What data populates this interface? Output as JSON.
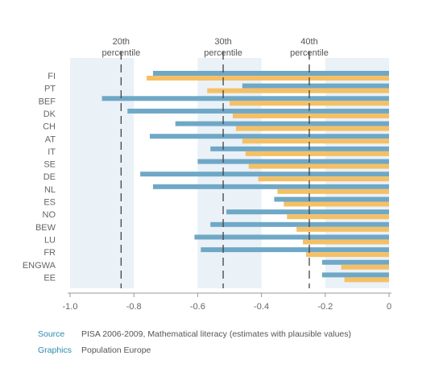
{
  "chart_data": {
    "type": "bar",
    "orientation": "horizontal",
    "categories": [
      "FI",
      "PT",
      "BEF",
      "DK",
      "CH",
      "AT",
      "IT",
      "SE",
      "DE",
      "NL",
      "ES",
      "NO",
      "BEW",
      "LU",
      "FR",
      "ENGWA",
      "EE"
    ],
    "series": [
      {
        "color": "#6fa8c7",
        "values": [
          -0.74,
          -0.46,
          -0.9,
          -0.82,
          -0.67,
          -0.75,
          -0.56,
          -0.6,
          -0.78,
          -0.74,
          -0.36,
          -0.51,
          -0.56,
          -0.61,
          -0.59,
          -0.21,
          -0.21
        ]
      },
      {
        "color": "#f5c065",
        "values": [
          -0.76,
          -0.57,
          -0.5,
          -0.49,
          -0.48,
          -0.46,
          -0.45,
          -0.44,
          -0.41,
          -0.35,
          -0.33,
          -0.32,
          -0.29,
          -0.27,
          -0.26,
          -0.15,
          -0.14
        ]
      }
    ],
    "xlim": [
      -1.0,
      0
    ],
    "xticks": [
      -1.0,
      -0.8,
      -0.6,
      -0.4,
      -0.2,
      0
    ],
    "xtick_labels": [
      "-1.0",
      "-0.8",
      "-0.6",
      "-0.4",
      "-0.2",
      "0"
    ],
    "percentile_bands": [
      {
        "from": -1.0,
        "to": -0.8,
        "line": -0.84,
        "label": [
          "20th",
          "percentile"
        ]
      },
      {
        "from": -0.6,
        "to": -0.4,
        "line": -0.52,
        "label": [
          "30th",
          "percentile"
        ]
      },
      {
        "from": -0.2,
        "to": 0.0,
        "line": -0.25,
        "label": [
          "40th",
          "percentile"
        ]
      }
    ],
    "band_color": "#eaf1f7",
    "grid": false,
    "legend": "none"
  },
  "footer": {
    "source_key": "Source",
    "source_text": "PISA 2006-2009, Mathematical literacy (estimates with plausible values)",
    "graphics_key": "Graphics",
    "graphics_text": "Population Europe"
  }
}
